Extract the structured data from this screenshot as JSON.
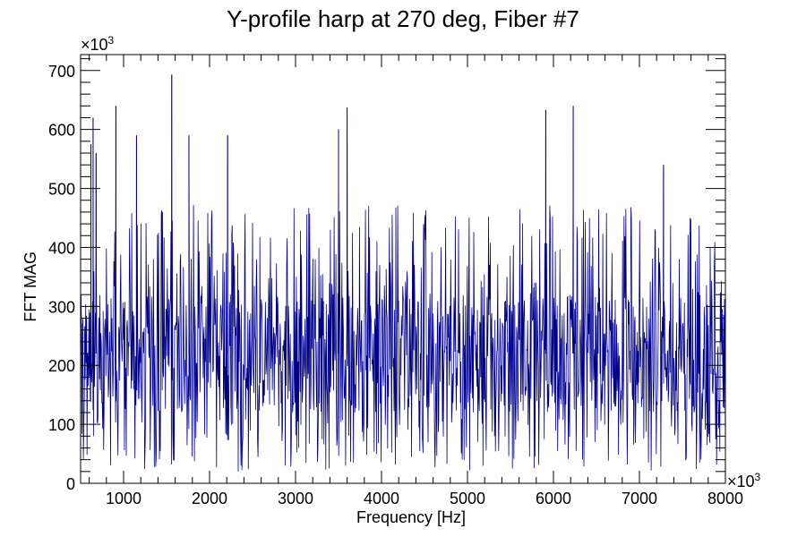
{
  "chart_data": {
    "type": "line",
    "title": "Y-profile harp at 270 deg, Fiber #7",
    "xlabel": "Frequency [Hz]",
    "ylabel": "FFT MAG",
    "x_multiplier": "×10",
    "x_multiplier_exp": "3",
    "y_multiplier": "×10",
    "y_multiplier_exp": "3",
    "xlim": [
      500,
      8000
    ],
    "ylim": [
      0,
      727
    ],
    "xticks": [
      "1000",
      "2000",
      "3000",
      "4000",
      "5000",
      "6000",
      "7000",
      "8000"
    ],
    "yticks": [
      "0",
      "100",
      "200",
      "300",
      "400",
      "500",
      "600",
      "700"
    ],
    "series_color": "#00008b",
    "typical_level": 220,
    "noise_band": [
      80,
      450
    ],
    "notable_peaks": [
      {
        "x": 620,
        "y": 575
      },
      {
        "x": 645,
        "y": 620
      },
      {
        "x": 680,
        "y": 560
      },
      {
        "x": 910,
        "y": 640
      },
      {
        "x": 1150,
        "y": 590
      },
      {
        "x": 1560,
        "y": 693
      },
      {
        "x": 1760,
        "y": 590
      },
      {
        "x": 2210,
        "y": 590
      },
      {
        "x": 3500,
        "y": 600
      },
      {
        "x": 3600,
        "y": 637
      },
      {
        "x": 5910,
        "y": 633
      },
      {
        "x": 6230,
        "y": 640
      },
      {
        "x": 7280,
        "y": 540
      }
    ],
    "grid": false,
    "legend": "none"
  }
}
